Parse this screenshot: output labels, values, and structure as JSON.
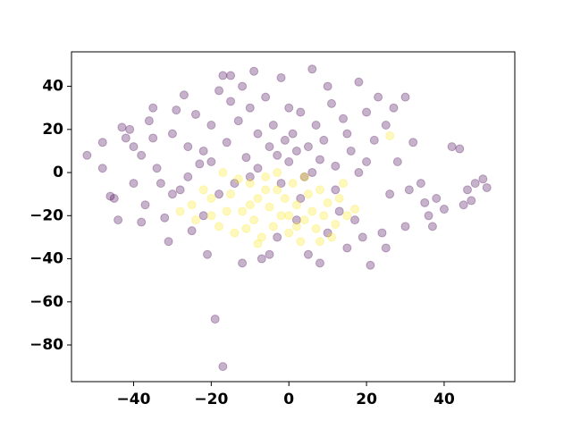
{
  "chart_data": {
    "type": "scatter",
    "xlim": [
      -56,
      58.2
    ],
    "ylim": [
      -97,
      56
    ],
    "xticks": [
      {
        "value": -40,
        "label": "−40"
      },
      {
        "value": -20,
        "label": "−20"
      },
      0,
      20,
      40
    ],
    "yticks": [
      {
        "value": -80,
        "label": "−80"
      },
      {
        "value": -60,
        "label": "−60"
      },
      {
        "value": -40,
        "label": "−40"
      },
      {
        "value": -20,
        "label": "−20"
      },
      0,
      20,
      40
    ],
    "opacity": 0.3,
    "series": [
      {
        "color": "#440154",
        "x": [
          -52,
          -48,
          -46,
          -45,
          -43,
          -42,
          -41,
          -40,
          -38,
          -37,
          -36,
          -35,
          -34,
          -33,
          -32,
          -31,
          -30,
          -29,
          -28,
          -27,
          -26,
          -25,
          -24,
          -23,
          -22,
          -21,
          -20,
          -19,
          -18,
          -17,
          -17,
          -16,
          -15,
          -14,
          -13,
          -12,
          -11,
          -10,
          -9,
          -8,
          -7,
          -6,
          -5,
          -4,
          -3,
          -2,
          -1,
          0,
          1,
          2,
          3,
          4,
          5,
          6,
          7,
          8,
          9,
          10,
          11,
          12,
          13,
          14,
          15,
          16,
          17,
          18,
          19,
          20,
          21,
          22,
          23,
          24,
          25,
          26,
          27,
          28,
          30,
          31,
          32,
          34,
          35,
          36,
          37,
          38,
          40,
          42,
          44,
          45,
          46,
          48,
          50,
          51,
          47,
          -44,
          -38,
          -12,
          -3,
          5,
          8,
          2,
          -30,
          -20,
          -10,
          12,
          18,
          -26,
          -35,
          -8,
          3,
          15,
          25,
          -48,
          -15,
          10,
          -40,
          30,
          -5,
          0,
          20,
          -22,
          -18,
          6,
          -2
        ],
        "y": [
          8,
          2,
          -11,
          -12,
          21,
          16,
          20,
          12,
          8,
          -15,
          24,
          16,
          2,
          -5,
          -21,
          -32,
          18,
          29,
          -8,
          36,
          12,
          -27,
          27,
          4,
          -20,
          -38,
          22,
          -68,
          38,
          -90,
          45,
          14,
          33,
          -5,
          24,
          40,
          7,
          30,
          47,
          18,
          -40,
          35,
          12,
          22,
          8,
          44,
          15,
          5,
          18,
          10,
          28,
          -2,
          12,
          48,
          22,
          6,
          15,
          -28,
          32,
          3,
          -18,
          25,
          -35,
          10,
          -22,
          42,
          -30,
          28,
          -43,
          15,
          35,
          -28,
          22,
          -10,
          30,
          5,
          35,
          -8,
          14,
          -5,
          -14,
          -20,
          -25,
          -12,
          -17,
          12,
          11,
          -15,
          -8,
          -5,
          -3,
          -7,
          -13,
          -22,
          -23,
          -42,
          -30,
          -38,
          -42,
          -22,
          -10,
          5,
          -2,
          -8,
          0,
          -2,
          30,
          2,
          -12,
          18,
          -35,
          14,
          45,
          40,
          -5,
          -25,
          -38,
          30,
          5,
          10,
          -10,
          0,
          -5
        ]
      },
      {
        "color": "#fde725",
        "x": [
          -25,
          -22,
          -20,
          -18,
          -15,
          -14,
          -12,
          -10,
          -9,
          -8,
          -7,
          -6,
          -5,
          -4,
          -3,
          -2,
          -1,
          0,
          1,
          2,
          3,
          4,
          5,
          6,
          7,
          8,
          9,
          10,
          11,
          12,
          13,
          15,
          -16,
          -11,
          -6,
          -13,
          -20,
          -24,
          -17,
          0,
          4,
          -8,
          8,
          17,
          26,
          -3,
          -10,
          2,
          -28,
          14
        ],
        "y": [
          -15,
          -8,
          -20,
          -25,
          -10,
          -28,
          -18,
          -5,
          -22,
          -12,
          -30,
          -2,
          -16,
          -25,
          -8,
          -20,
          -12,
          -28,
          -5,
          -15,
          -32,
          -22,
          -10,
          -18,
          -26,
          -8,
          -20,
          -14,
          -30,
          -24,
          -12,
          -20,
          -18,
          -26,
          -8,
          -3,
          -12,
          -22,
          0,
          -20,
          -2,
          -33,
          -32,
          -17,
          17,
          0,
          -15,
          -25,
          -18,
          -5
        ]
      }
    ]
  }
}
